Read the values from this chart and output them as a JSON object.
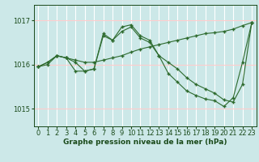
{
  "xlabel": "Graphe pression niveau de la mer (hPa)",
  "hours": [
    0,
    1,
    2,
    3,
    4,
    5,
    6,
    7,
    8,
    9,
    10,
    11,
    12,
    13,
    14,
    15,
    16,
    17,
    18,
    19,
    20,
    21,
    22,
    23
  ],
  "line1": [
    1015.95,
    1016.0,
    1016.2,
    1016.15,
    1016.1,
    1016.05,
    1016.05,
    1016.1,
    1016.15,
    1016.2,
    1016.28,
    1016.35,
    1016.4,
    1016.45,
    1016.5,
    1016.55,
    1016.6,
    1016.65,
    1016.7,
    1016.72,
    1016.75,
    1016.8,
    1016.88,
    1016.95
  ],
  "line2": [
    1015.95,
    1016.05,
    1016.2,
    1016.15,
    1015.85,
    1015.85,
    1015.9,
    1016.7,
    1016.55,
    1016.85,
    1016.9,
    1016.65,
    1016.55,
    1016.2,
    1015.8,
    1015.6,
    1015.4,
    1015.3,
    1015.22,
    1015.18,
    1015.05,
    1015.25,
    1016.05,
    1016.95
  ],
  "line3": [
    1015.95,
    1016.05,
    1016.2,
    1016.15,
    1016.05,
    1015.85,
    1015.9,
    1016.65,
    1016.55,
    1016.75,
    1016.85,
    1016.6,
    1016.5,
    1016.2,
    1016.05,
    1015.9,
    1015.7,
    1015.55,
    1015.45,
    1015.35,
    1015.2,
    1015.15,
    1015.55,
    1016.95
  ],
  "line_color": "#2d6a2d",
  "bg_color": "#cce8e8",
  "hgrid_color": "#ffcccc",
  "vgrid_color": "#ffffff",
  "yticks": [
    1015,
    1016,
    1017
  ],
  "ylim": [
    1014.6,
    1017.35
  ],
  "xlim": [
    -0.5,
    23.5
  ],
  "marker": "+",
  "markersize": 3,
  "linewidth": 0.8,
  "xlabel_fontsize": 6.5,
  "tick_fontsize": 6.0,
  "label_color": "#1a4a1a",
  "figwidth": 3.2,
  "figheight": 2.0,
  "dpi": 100
}
